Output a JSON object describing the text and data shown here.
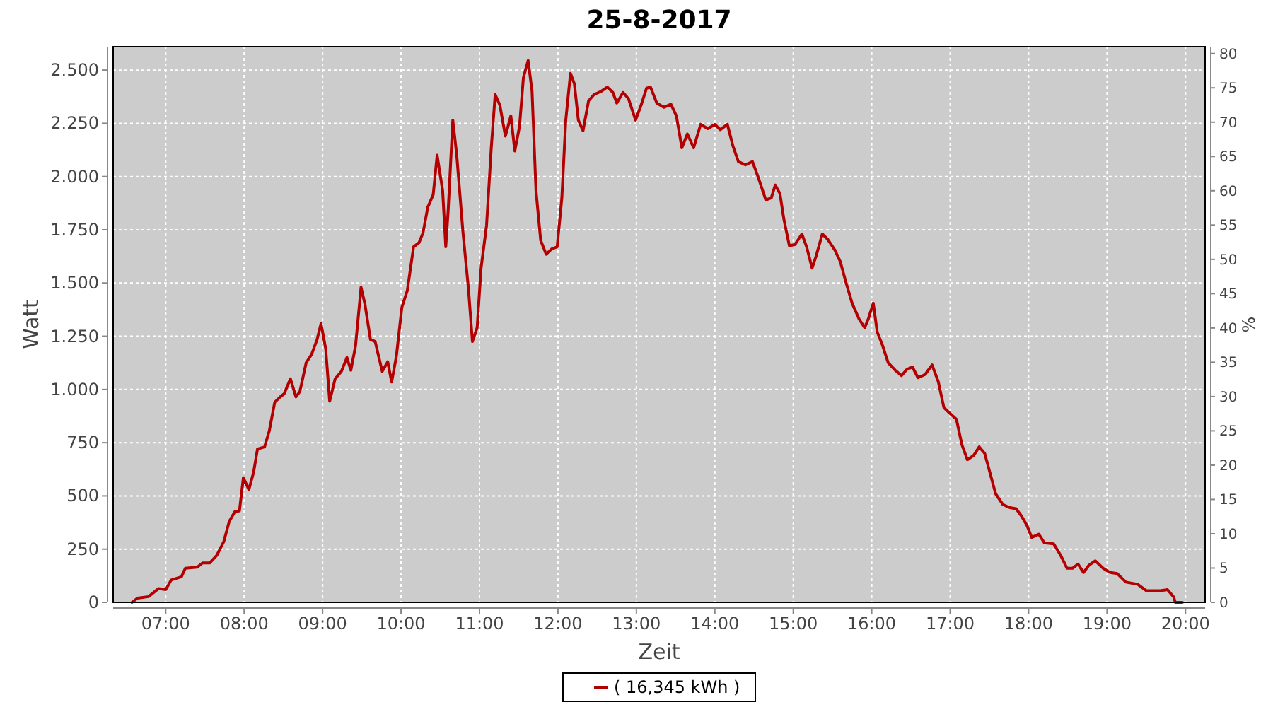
{
  "chart_data": {
    "type": "line",
    "title": "25-8-2017",
    "xlabel": "Zeit",
    "ylabel": "Watt",
    "y2label": "%",
    "xlim": [
      6.33,
      20.25
    ],
    "xticks": [
      {
        "value": 7,
        "label": "07:00"
      },
      {
        "value": 8,
        "label": "08:00"
      },
      {
        "value": 9,
        "label": "09:00"
      },
      {
        "value": 10,
        "label": "10:00"
      },
      {
        "value": 11,
        "label": "11:00"
      },
      {
        "value": 12,
        "label": "12:00"
      },
      {
        "value": 13,
        "label": "13:00"
      },
      {
        "value": 14,
        "label": "14:00"
      },
      {
        "value": 15,
        "label": "15:00"
      },
      {
        "value": 16,
        "label": "16:00"
      },
      {
        "value": 17,
        "label": "17:00"
      },
      {
        "value": 18,
        "label": "18:00"
      },
      {
        "value": 19,
        "label": "19:00"
      },
      {
        "value": 20,
        "label": "20:00"
      }
    ],
    "ylim": [
      0,
      2610
    ],
    "yticks": [
      0,
      250,
      500,
      750,
      {
        "value": 1000,
        "label": "1.000"
      },
      {
        "value": 1250,
        "label": "1.250"
      },
      {
        "value": 1500,
        "label": "1.500"
      },
      {
        "value": 1750,
        "label": "1.750"
      },
      {
        "value": 2000,
        "label": "2.000"
      },
      {
        "value": 2250,
        "label": "2.250"
      },
      {
        "value": 2500,
        "label": "2.500"
      }
    ],
    "y2lim": [
      0,
      81
    ],
    "y2ticks": [
      0,
      5,
      10,
      15,
      20,
      25,
      30,
      35,
      40,
      45,
      50,
      55,
      60,
      65,
      70,
      75,
      80
    ],
    "grid": true,
    "legend": "bottom",
    "marker": "none",
    "line_style": "solid",
    "series": [
      {
        "name": "( 16,345 kWh )",
        "color": "#b40000",
        "x": [
          6.57,
          6.64,
          6.78,
          6.91,
          7.0,
          7.07,
          7.2,
          7.25,
          7.4,
          7.47,
          7.56,
          7.65,
          7.74,
          7.81,
          7.88,
          7.94,
          7.99,
          8.06,
          8.12,
          8.17,
          8.26,
          8.32,
          8.39,
          8.46,
          8.51,
          8.59,
          8.66,
          8.71,
          8.79,
          8.86,
          8.93,
          8.98,
          9.04,
          9.09,
          9.16,
          9.24,
          9.31,
          9.36,
          9.42,
          9.49,
          9.54,
          9.61,
          9.67,
          9.76,
          9.83,
          9.88,
          9.94,
          10.01,
          10.08,
          10.16,
          10.23,
          10.28,
          10.34,
          10.41,
          10.46,
          10.53,
          10.57,
          10.6,
          10.66,
          10.71,
          10.79,
          10.86,
          10.91,
          10.97,
          11.02,
          11.09,
          11.15,
          11.2,
          11.26,
          11.33,
          11.4,
          11.45,
          11.51,
          11.56,
          11.62,
          11.67,
          11.72,
          11.78,
          11.85,
          11.92,
          11.99,
          12.05,
          12.1,
          12.16,
          12.21,
          12.26,
          12.32,
          12.39,
          12.46,
          12.55,
          12.63,
          12.7,
          12.75,
          12.83,
          12.9,
          12.99,
          13.06,
          13.13,
          13.18,
          13.26,
          13.35,
          13.44,
          13.51,
          13.58,
          13.65,
          13.73,
          13.82,
          13.91,
          14.0,
          14.07,
          14.16,
          14.23,
          14.3,
          14.39,
          14.48,
          14.55,
          14.65,
          14.72,
          14.77,
          14.83,
          14.88,
          14.95,
          15.02,
          15.11,
          15.17,
          15.24,
          15.29,
          15.37,
          15.44,
          15.53,
          15.6,
          15.67,
          15.75,
          15.84,
          15.91,
          15.96,
          16.02,
          16.07,
          16.14,
          16.21,
          16.3,
          16.38,
          16.45,
          16.52,
          16.59,
          16.68,
          16.77,
          16.85,
          16.92,
          16.99,
          17.08,
          17.15,
          17.22,
          17.3,
          17.37,
          17.44,
          17.51,
          17.58,
          17.67,
          17.76,
          17.84,
          17.91,
          17.98,
          18.04,
          18.13,
          18.2,
          18.32,
          18.41,
          18.49,
          18.56,
          18.63,
          18.7,
          18.77,
          18.85,
          18.95,
          19.04,
          19.13,
          19.24,
          19.39,
          19.5,
          19.68,
          19.77,
          19.85,
          19.87,
          19.96
        ],
        "values": [
          0,
          20,
          27,
          65,
          60,
          105,
          120,
          160,
          165,
          185,
          185,
          220,
          285,
          380,
          425,
          430,
          585,
          530,
          610,
          720,
          730,
          805,
          940,
          965,
          980,
          1050,
          965,
          990,
          1125,
          1165,
          1235,
          1310,
          1190,
          945,
          1050,
          1085,
          1150,
          1090,
          1205,
          1480,
          1400,
          1235,
          1225,
          1085,
          1130,
          1035,
          1155,
          1385,
          1465,
          1670,
          1690,
          1735,
          1855,
          1915,
          2100,
          1935,
          1670,
          1835,
          2265,
          2100,
          1735,
          1470,
          1225,
          1290,
          1570,
          1770,
          2135,
          2385,
          2335,
          2190,
          2285,
          2120,
          2235,
          2465,
          2545,
          2400,
          1935,
          1700,
          1635,
          1660,
          1670,
          1900,
          2265,
          2485,
          2435,
          2265,
          2215,
          2355,
          2385,
          2400,
          2420,
          2395,
          2345,
          2395,
          2365,
          2265,
          2335,
          2415,
          2420,
          2345,
          2325,
          2340,
          2285,
          2135,
          2200,
          2135,
          2245,
          2225,
          2245,
          2220,
          2245,
          2145,
          2070,
          2055,
          2070,
          2000,
          1890,
          1900,
          1960,
          1920,
          1800,
          1675,
          1680,
          1730,
          1670,
          1570,
          1625,
          1730,
          1705,
          1655,
          1600,
          1505,
          1405,
          1330,
          1290,
          1335,
          1405,
          1270,
          1205,
          1125,
          1090,
          1065,
          1095,
          1105,
          1055,
          1070,
          1115,
          1035,
          915,
          890,
          860,
          740,
          670,
          690,
          730,
          700,
          605,
          510,
          460,
          445,
          440,
          405,
          360,
          305,
          320,
          280,
          275,
          220,
          160,
          160,
          180,
          140,
          175,
          195,
          160,
          140,
          135,
          95,
          85,
          55,
          55,
          60,
          25,
          0,
          0
        ]
      }
    ]
  }
}
